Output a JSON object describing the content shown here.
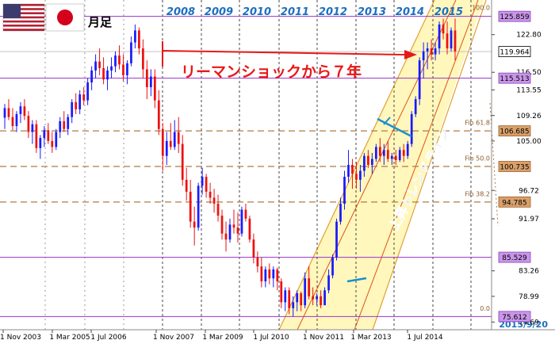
{
  "header": {
    "period_label": "月足"
  },
  "annotations": {
    "lehman_text": "リーマンショックから７年",
    "trendline_text": "上昇トレンドライン",
    "date_stamp": "2015/9/20"
  },
  "fib_labels": {
    "f100": "100.0",
    "f618": "Fib 61.8",
    "f500": "Fib 50.0",
    "f382": "Fib 38.2",
    "f0": "0.0"
  },
  "colors": {
    "up": "#1a1aff",
    "down": "#ee1111",
    "purple": "#9933cc",
    "fib": "#b07a44",
    "channel_fill": "#fff6b0",
    "channel_line": "#e0a030",
    "year_text": "#1c6fbf"
  },
  "chart_data": {
    "type": "candlestick",
    "title": "",
    "timeframe": "monthly",
    "ylim": [
      73.4,
      128.6
    ],
    "year_labels": [
      "2008",
      "2009",
      "2010",
      "2011",
      "2012",
      "2013",
      "2014",
      "2015"
    ],
    "x_tick_labels": [
      "1 Nov 2003",
      "1 Mar 2005",
      "1 Jul 2006",
      "1 Nov 2007",
      "1 Mar 2009",
      "1 Jul 2010",
      "1 Nov 2011",
      "1 Mar 2013",
      "1 Jul 2014"
    ],
    "y_tick_labels": [
      "122.80",
      "116.50",
      "113.55",
      "109.26",
      "105.00",
      "96.72",
      "91.97",
      "83.26",
      "78.99",
      "74.69"
    ],
    "levels": [
      {
        "label": "125.859",
        "value": 125.859,
        "style": "purple"
      },
      {
        "label": "119.964",
        "value": 119.964,
        "style": "current"
      },
      {
        "label": "115.513",
        "value": 115.513,
        "style": "purple"
      },
      {
        "label": "106.685",
        "value": 106.685,
        "style": "fib"
      },
      {
        "label": "100.735",
        "value": 100.735,
        "style": "fib"
      },
      {
        "label": "94.785",
        "value": 94.785,
        "style": "fib"
      },
      {
        "label": "85.529",
        "value": 85.529,
        "style": "purple"
      },
      {
        "label": "75.612",
        "value": 75.612,
        "style": "purple"
      }
    ],
    "series": [
      {
        "name": "",
        "ohlc": [
          [
            108.9,
            111.2,
            107.0,
            110.5
          ],
          [
            110.5,
            112.0,
            108.5,
            109.0
          ],
          [
            109.0,
            110.5,
            106.8,
            107.5
          ],
          [
            107.5,
            110.0,
            106.5,
            109.5
          ],
          [
            109.5,
            111.5,
            108.0,
            110.8
          ],
          [
            110.8,
            112.0,
            108.5,
            109.2
          ],
          [
            109.2,
            110.0,
            105.5,
            106.5
          ],
          [
            106.5,
            108.5,
            104.5,
            107.8
          ],
          [
            107.8,
            108.5,
            103.0,
            103.8
          ],
          [
            103.8,
            106.0,
            102.0,
            105.5
          ],
          [
            105.5,
            107.5,
            104.0,
            106.8
          ],
          [
            106.8,
            108.0,
            104.5,
            105.0
          ],
          [
            105.0,
            106.5,
            103.0,
            104.0
          ],
          [
            104.0,
            107.0,
            103.5,
            106.5
          ],
          [
            106.5,
            109.0,
            105.5,
            108.3
          ],
          [
            108.3,
            110.0,
            106.5,
            107.0
          ],
          [
            107.0,
            109.5,
            106.0,
            109.0
          ],
          [
            109.0,
            112.0,
            108.0,
            111.5
          ],
          [
            111.5,
            113.0,
            109.5,
            110.3
          ],
          [
            110.3,
            113.5,
            109.5,
            112.8
          ],
          [
            112.8,
            114.0,
            111.0,
            111.8
          ],
          [
            111.8,
            115.5,
            111.0,
            114.8
          ],
          [
            114.8,
            117.5,
            113.5,
            116.8
          ],
          [
            116.8,
            119.5,
            115.5,
            118.3
          ],
          [
            118.3,
            120.5,
            116.0,
            117.2
          ],
          [
            117.2,
            119.0,
            114.5,
            115.3
          ],
          [
            115.3,
            117.5,
            113.5,
            116.8
          ],
          [
            116.8,
            119.0,
            115.5,
            117.5
          ],
          [
            117.5,
            120.0,
            116.5,
            119.3
          ],
          [
            119.3,
            121.0,
            117.0,
            117.8
          ],
          [
            117.8,
            119.5,
            115.0,
            116.0
          ],
          [
            116.0,
            118.5,
            114.5,
            118.0
          ],
          [
            118.0,
            122.5,
            117.5,
            121.5
          ],
          [
            121.5,
            124.5,
            120.5,
            123.5
          ],
          [
            123.5,
            124.0,
            119.5,
            120.5
          ],
          [
            120.5,
            122.0,
            115.5,
            117.0
          ],
          [
            117.0,
            118.5,
            112.0,
            114.0
          ],
          [
            114.0,
            117.0,
            112.5,
            115.8
          ],
          [
            115.8,
            117.0,
            110.5,
            111.8
          ],
          [
            111.8,
            113.5,
            106.0,
            107.0
          ],
          [
            107.0,
            108.0,
            100.0,
            102.5
          ],
          [
            102.5,
            106.5,
            101.0,
            105.0
          ],
          [
            105.0,
            108.0,
            103.5,
            104.0
          ],
          [
            104.0,
            108.5,
            103.5,
            106.5
          ],
          [
            106.5,
            109.0,
            103.0,
            104.5
          ],
          [
            104.5,
            106.0,
            97.5,
            98.5
          ],
          [
            98.5,
            100.5,
            95.0,
            96.5
          ],
          [
            96.5,
            98.5,
            90.5,
            91.5
          ],
          [
            91.5,
            94.0,
            87.5,
            90.5
          ],
          [
            90.5,
            98.0,
            90.0,
            97.5
          ],
          [
            97.5,
            100.5,
            96.0,
            99.0
          ],
          [
            99.0,
            99.5,
            95.5,
            96.5
          ],
          [
            96.5,
            98.0,
            94.5,
            95.5
          ],
          [
            95.5,
            97.0,
            93.0,
            94.5
          ],
          [
            94.5,
            96.0,
            91.5,
            92.5
          ],
          [
            92.5,
            93.5,
            88.5,
            89.5
          ],
          [
            89.5,
            91.5,
            86.5,
            88.5
          ],
          [
            88.5,
            92.0,
            88.0,
            91.0
          ],
          [
            91.0,
            93.5,
            89.5,
            90.5
          ],
          [
            90.5,
            93.0,
            88.0,
            89.5
          ],
          [
            89.5,
            94.0,
            89.0,
            93.5
          ],
          [
            93.5,
            94.5,
            91.5,
            92.0
          ],
          [
            92.0,
            92.5,
            88.0,
            88.5
          ],
          [
            88.5,
            89.5,
            84.5,
            85.5
          ],
          [
            85.5,
            86.5,
            83.0,
            84.0
          ],
          [
            84.0,
            85.5,
            80.5,
            81.5
          ],
          [
            81.5,
            84.0,
            80.5,
            83.5
          ],
          [
            83.5,
            84.5,
            81.0,
            82.0
          ],
          [
            82.0,
            84.0,
            80.5,
            83.5
          ],
          [
            83.5,
            83.8,
            80.0,
            81.5
          ],
          [
            81.5,
            82.0,
            77.0,
            78.0
          ],
          [
            78.0,
            80.5,
            76.5,
            80.0
          ],
          [
            80.0,
            80.5,
            76.0,
            77.0
          ],
          [
            77.0,
            79.0,
            75.6,
            78.0
          ],
          [
            78.0,
            80.0,
            76.5,
            79.5
          ],
          [
            79.5,
            79.8,
            76.5,
            77.5
          ],
          [
            77.5,
            83.0,
            77.0,
            82.0
          ],
          [
            82.0,
            84.0,
            78.5,
            79.0
          ],
          [
            79.0,
            80.5,
            77.5,
            78.5
          ],
          [
            78.5,
            79.5,
            77.5,
            79.0
          ],
          [
            79.0,
            80.0,
            77.0,
            77.5
          ],
          [
            77.5,
            80.5,
            77.5,
            80.0
          ],
          [
            80.0,
            83.5,
            79.5,
            82.5
          ],
          [
            82.5,
            86.0,
            82.0,
            85.5
          ],
          [
            85.5,
            92.0,
            85.0,
            91.5
          ],
          [
            91.5,
            95.5,
            91.0,
            94.5
          ],
          [
            94.5,
            100.0,
            93.5,
            99.0
          ],
          [
            99.0,
            103.5,
            98.0,
            101.0
          ],
          [
            101.0,
            102.0,
            97.0,
            99.5
          ],
          [
            99.5,
            101.5,
            97.0,
            98.5
          ],
          [
            98.5,
            101.0,
            96.5,
            100.0
          ],
          [
            100.0,
            103.0,
            99.0,
            102.5
          ],
          [
            102.5,
            103.5,
            100.5,
            101.0
          ],
          [
            101.0,
            103.0,
            99.5,
            102.0
          ],
          [
            102.0,
            104.5,
            101.5,
            104.0
          ],
          [
            104.0,
            105.5,
            101.5,
            102.5
          ],
          [
            102.5,
            104.5,
            101.0,
            103.5
          ],
          [
            103.5,
            105.0,
            101.5,
            102.0
          ],
          [
            102.0,
            103.0,
            101.0,
            102.5
          ],
          [
            102.5,
            103.5,
            101.0,
            101.8
          ],
          [
            101.8,
            104.0,
            101.5,
            103.5
          ],
          [
            103.5,
            104.5,
            101.5,
            102.5
          ],
          [
            102.5,
            105.0,
            102.0,
            104.5
          ],
          [
            104.5,
            110.0,
            104.0,
            109.5
          ],
          [
            109.5,
            112.5,
            109.0,
            112.0
          ],
          [
            112.0,
            119.0,
            111.0,
            118.5
          ],
          [
            118.5,
            121.5,
            115.5,
            120.0
          ],
          [
            120.0,
            121.5,
            117.0,
            120.5
          ],
          [
            120.5,
            122.0,
            118.5,
            119.5
          ],
          [
            119.5,
            121.5,
            118.5,
            120.5
          ],
          [
            120.5,
            125.0,
            119.5,
            124.5
          ],
          [
            124.5,
            125.5,
            122.0,
            123.0
          ],
          [
            123.0,
            125.0,
            119.5,
            120.5
          ],
          [
            120.5,
            124.0,
            120.0,
            123.5
          ],
          [
            123.5,
            125.5,
            118.5,
            120.0
          ]
        ]
      }
    ]
  }
}
